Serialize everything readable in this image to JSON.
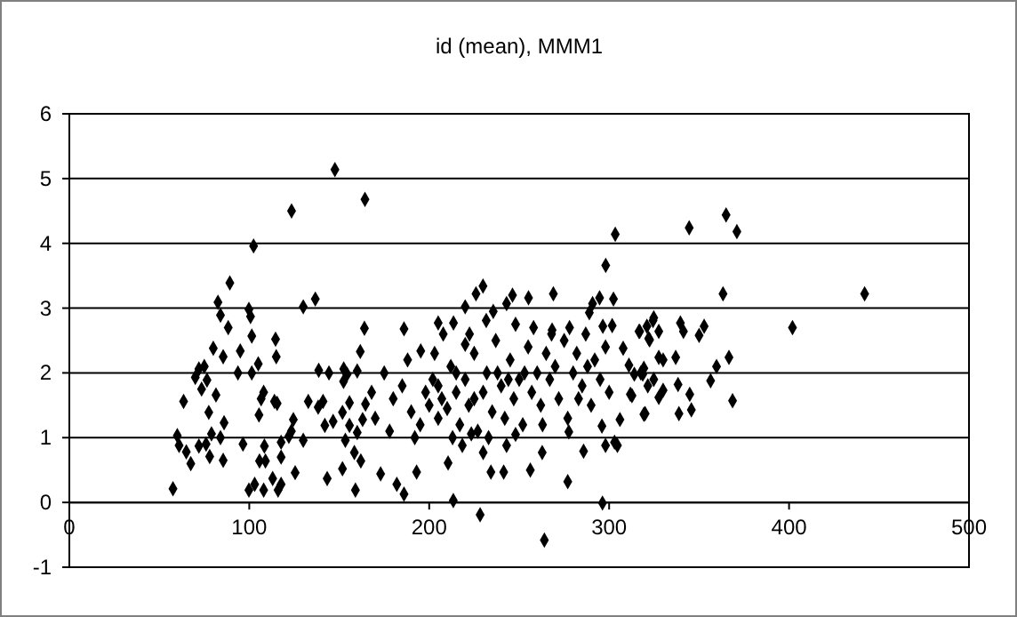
{
  "chart_data": {
    "type": "scatter",
    "title": "id (mean), MMM1",
    "marker": "diamond",
    "grid": "y",
    "xlim": [
      0,
      500
    ],
    "xticks": [
      0,
      100,
      200,
      300,
      400,
      500
    ],
    "ylim": [
      -1,
      6
    ],
    "yticks": [
      -1,
      0,
      1,
      2,
      3,
      4,
      5,
      6
    ],
    "series": [
      {
        "color": "#000000",
        "x": [
          57.6,
          60,
          61,
          63.5,
          65,
          67.5,
          70,
          72,
          73.5,
          75,
          76.5,
          77.5,
          78,
          79,
          80,
          81.5,
          82.6,
          84,
          85.5,
          86,
          85.5,
          88.3,
          89.2,
          84,
          72,
          76,
          95,
          93.7,
          96.5,
          99.8,
          100.7,
          101.4,
          102.4,
          101.4,
          99.8,
          103,
          105.4,
          105,
          106.6,
          108,
          105.7,
          108,
          109,
          108.4,
          113,
          114.6,
          115,
          114,
          115.5,
          116,
          117.7,
          117.7,
          117.7,
          122,
          123.4,
          124.5,
          123.5,
          125.5,
          130,
          130,
          132.8,
          136.7,
          138.3,
          138.6,
          141,
          142,
          143.3,
          144.3,
          146.6,
          147.6,
          151.8,
          151.8,
          152.4,
          153.4,
          154.4,
          155.7,
          155.7,
          158.4,
          159,
          160,
          160,
          161.7,
          163,
          164,
          164.3,
          164.6,
          152.5,
          162,
          173,
          182,
          186,
          186,
          193,
          195.3,
          205,
          207.8,
          213.5,
          210.5,
          213.4,
          228.3,
          220,
          226,
          229.9,
          235.6,
          231.7,
          222.4,
          220,
          218.4,
          223.4,
          230,
          234.3,
          241.4,
          243,
          243,
          246.3,
          248,
          255.2,
          256.2,
          262.8,
          269,
          268.3,
          277,
          277.6,
          285.8,
          289,
          290.8,
          294.7,
          302.4,
          301.7,
          296.5,
          298.1,
          303.4,
          296.3,
          296,
          298,
          303,
          304.6,
          306,
          307.8,
          311,
          312.7,
          319.3,
          318.7,
          322.5,
          324.8,
          316.6,
          264,
          180,
          185,
          190,
          195,
          198,
          200,
          202,
          205,
          207,
          210,
          212,
          215,
          217,
          220,
          222,
          225,
          227,
          230,
          232,
          235,
          237,
          240,
          242,
          245,
          247,
          250,
          252,
          255,
          257,
          260,
          262,
          265,
          267,
          270,
          272,
          275,
          277,
          280,
          282,
          285,
          287,
          290,
          292,
          295,
          298,
          300,
          175,
          170,
          168,
          178,
          188,
          192,
          203,
          213,
          233,
          248,
          258,
          263,
          283,
          205,
          215,
          225,
          238,
          244,
          253,
          268,
          278,
          288,
          344.5,
          365,
          371,
          363.3,
          442,
          401.9,
          324.4,
          321,
          317,
          327.6,
          322,
          339.6,
          341.3,
          352.8,
          350,
          314,
          317.6,
          319.3,
          324.8,
          327.6,
          330,
          337,
          359.7,
          366.6,
          356.4,
          338.3,
          344.8,
          330,
          327.6,
          321.5,
          311.8,
          320,
          338.8,
          345.7,
          368.6
        ],
        "values": [
          0.21,
          1.03,
          0.88,
          1.56,
          0.78,
          0.6,
          1.93,
          2.06,
          1.75,
          2.1,
          1.89,
          1.39,
          0.71,
          1.06,
          2.38,
          1.66,
          3.09,
          2.89,
          2.25,
          1.23,
          0.65,
          2.7,
          3.39,
          1,
          0.87,
          0.9,
          2.34,
          2,
          0.9,
          2.98,
          2.87,
          2.57,
          3.96,
          2,
          0.19,
          0.28,
          1.35,
          2.14,
          1.6,
          1.7,
          0.64,
          0.19,
          0.64,
          0.87,
          0.37,
          2.52,
          2.25,
          1.56,
          1.53,
          0.19,
          0.7,
          0.28,
          0.93,
          1.02,
          1.1,
          1.28,
          4.5,
          0.46,
          3.02,
          0.96,
          1.56,
          3.14,
          1.47,
          2.04,
          1.56,
          1.19,
          0.37,
          2,
          1.25,
          5.14,
          0.52,
          1.39,
          1.87,
          0.96,
          1.98,
          1.54,
          1.19,
          0.77,
          0.19,
          1.08,
          2.03,
          2.33,
          1.28,
          2.69,
          4.68,
          1.52,
          2.06,
          0.64,
          0.44,
          0.28,
          0.13,
          2.68,
          0.47,
          2.34,
          2.77,
          2.6,
          2.77,
          0.61,
          0.03,
          -0.19,
          3.02,
          3.22,
          3.34,
          2.95,
          2.81,
          2.6,
          2.44,
          0.88,
          1.06,
          0.77,
          0.47,
          0.47,
          0.88,
          3.07,
          3.2,
          2.75,
          3.16,
          0.5,
          0.77,
          3.22,
          2.66,
          0.32,
          1.09,
          0.79,
          2.93,
          3.07,
          3.16,
          3.14,
          2.73,
          2.72,
          3.66,
          4.14,
          -0.01,
          1.18,
          0.88,
          0.93,
          0.88,
          1.28,
          2.38,
          2.12,
          1.65,
          1.36,
          1.98,
          2.51,
          2.85,
          2.64,
          -0.58,
          1.6,
          1.8,
          1.4,
          1.2,
          1.7,
          1.5,
          1.9,
          1.3,
          1.6,
          1.45,
          2.1,
          1.7,
          1.2,
          1.9,
          1.5,
          2.3,
          1.1,
          1.7,
          2,
          1.4,
          2.5,
          1.8,
          1.3,
          2.2,
          1.6,
          1.9,
          1.2,
          2.4,
          1.7,
          2,
          1.5,
          2.3,
          1.9,
          2.1,
          1.6,
          2.5,
          1.3,
          2,
          2.3,
          1.8,
          2.6,
          1.5,
          2.2,
          1.9,
          2.4,
          1.7,
          2,
          1.3,
          1.7,
          1.1,
          2.2,
          1,
          2.3,
          1,
          1,
          1.05,
          2.7,
          1.2,
          1.6,
          1.8,
          2,
          1.6,
          2,
          1.9,
          2,
          2.6,
          2.7,
          2.1,
          4.24,
          4.44,
          4.18,
          3.22,
          3.22,
          2.7,
          2.81,
          2.72,
          2.64,
          2.64,
          2.53,
          2.77,
          2.64,
          2.72,
          2.58,
          1.98,
          2,
          2.07,
          1.9,
          2.24,
          2.2,
          2.24,
          2.1,
          2.24,
          1.88,
          1.82,
          1.67,
          1.73,
          1.62,
          1.8,
          1.67,
          1.37,
          1.37,
          1.43,
          1.57
        ]
      }
    ]
  }
}
